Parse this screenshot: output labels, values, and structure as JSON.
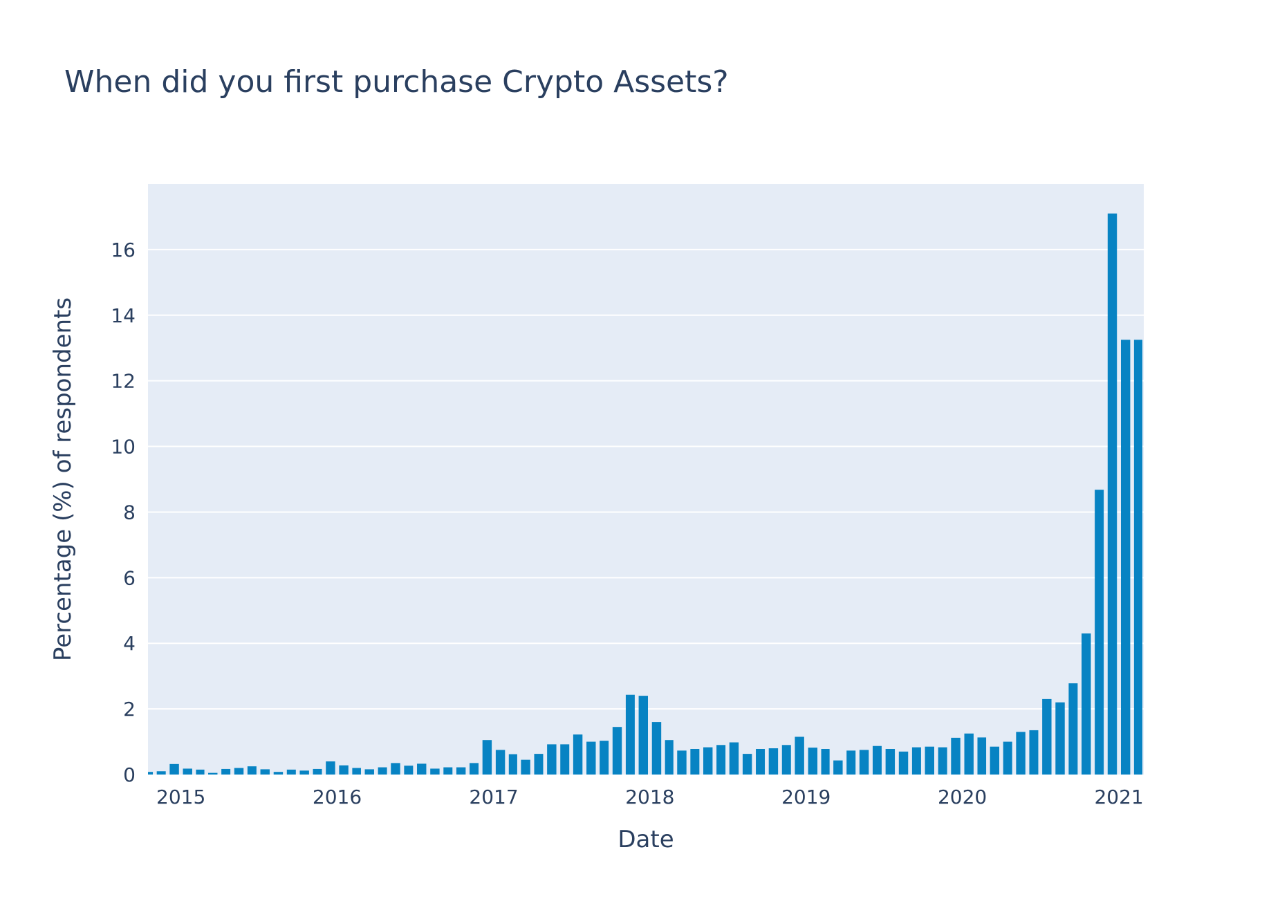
{
  "chart_data": {
    "type": "bar",
    "title": "When did you first purchase Crypto Assets?",
    "xlabel": "Date",
    "ylabel": "Percentage (%) of respondents",
    "xlim": [
      "2014-10-16",
      "2021-02-28"
    ],
    "ylim": [
      0,
      18
    ],
    "y_ticks": [
      "0",
      "2",
      "4",
      "6",
      "8",
      "10",
      "12",
      "14",
      "16"
    ],
    "x_ticks": [
      {
        "date": "2015-01-01",
        "label": "2015"
      },
      {
        "date": "2016-01-01",
        "label": "2016"
      },
      {
        "date": "2017-01-01",
        "label": "2017"
      },
      {
        "date": "2018-01-01",
        "label": "2018"
      },
      {
        "date": "2019-01-01",
        "label": "2019"
      },
      {
        "date": "2020-01-01",
        "label": "2020"
      },
      {
        "date": "2021-01-01",
        "label": "2021"
      }
    ],
    "grid": true,
    "color": "#0783c3",
    "plot_bg": "#e5ecf6",
    "x": [
      "2014-10",
      "2014-11",
      "2014-12",
      "2015-01",
      "2015-02",
      "2015-03",
      "2015-04",
      "2015-05",
      "2015-06",
      "2015-07",
      "2015-08",
      "2015-09",
      "2015-10",
      "2015-11",
      "2015-12",
      "2016-01",
      "2016-02",
      "2016-03",
      "2016-04",
      "2016-05",
      "2016-06",
      "2016-07",
      "2016-08",
      "2016-09",
      "2016-10",
      "2016-11",
      "2016-12",
      "2017-01",
      "2017-02",
      "2017-03",
      "2017-04",
      "2017-05",
      "2017-06",
      "2017-07",
      "2017-08",
      "2017-09",
      "2017-10",
      "2017-11",
      "2017-12",
      "2018-01",
      "2018-02",
      "2018-03",
      "2018-04",
      "2018-05",
      "2018-06",
      "2018-07",
      "2018-08",
      "2018-09",
      "2018-10",
      "2018-11",
      "2018-12",
      "2019-01",
      "2019-02",
      "2019-03",
      "2019-04",
      "2019-05",
      "2019-06",
      "2019-07",
      "2019-08",
      "2019-09",
      "2019-10",
      "2019-11",
      "2019-12",
      "2020-01",
      "2020-02",
      "2020-03",
      "2020-04",
      "2020-05",
      "2020-06",
      "2020-07",
      "2020-08",
      "2020-09",
      "2020-10",
      "2020-11",
      "2020-12",
      "2021-01",
      "2021-02"
    ],
    "values": [
      0.08,
      0.1,
      0.32,
      0.18,
      0.15,
      0.05,
      0.17,
      0.2,
      0.25,
      0.16,
      0.08,
      0.15,
      0.12,
      0.17,
      0.4,
      0.28,
      0.2,
      0.16,
      0.22,
      0.35,
      0.27,
      0.33,
      0.18,
      0.22,
      0.22,
      0.35,
      1.05,
      0.75,
      0.62,
      0.45,
      0.63,
      0.92,
      0.92,
      1.22,
      1.0,
      1.03,
      1.45,
      2.43,
      2.4,
      1.6,
      1.05,
      0.73,
      0.78,
      0.83,
      0.9,
      0.98,
      0.63,
      0.78,
      0.8,
      0.9,
      1.15,
      0.82,
      0.78,
      0.43,
      0.73,
      0.75,
      0.87,
      0.78,
      0.7,
      0.83,
      0.85,
      0.83,
      1.12,
      1.25,
      1.13,
      0.85,
      1.0,
      1.3,
      1.35,
      2.3,
      2.2,
      2.78,
      4.3,
      8.68,
      17.1,
      13.25,
      13.25
    ]
  }
}
